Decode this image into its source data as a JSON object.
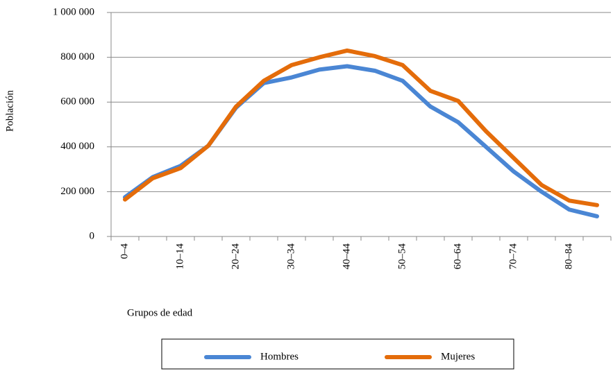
{
  "chart_data": {
    "type": "line",
    "x_label": "Grupos de edad",
    "y_label": "Población",
    "categories": [
      "0–4",
      null,
      "10–14",
      null,
      "20–24",
      null,
      "30–34",
      null,
      "40–44",
      null,
      "50–54",
      null,
      "60–64",
      null,
      "70–74",
      null,
      "80–84",
      null
    ],
    "series": [
      {
        "name": "Hombres",
        "color": "#4a86d4",
        "values": [
          175000,
          265000,
          315000,
          405000,
          575000,
          685000,
          710000,
          745000,
          760000,
          740000,
          695000,
          580000,
          510000,
          400000,
          290000,
          200000,
          120000,
          90000
        ]
      },
      {
        "name": "Mujeres",
        "color": "#e46c0a",
        "values": [
          165000,
          260000,
          305000,
          405000,
          580000,
          695000,
          765000,
          800000,
          830000,
          805000,
          765000,
          650000,
          605000,
          470000,
          350000,
          230000,
          160000,
          140000
        ]
      }
    ],
    "ylim": [
      0,
      1000000
    ],
    "yticks": [
      0,
      {
        "value": 200000,
        "label": "200 000"
      },
      {
        "value": 400000,
        "label": "400 000"
      },
      {
        "value": 600000,
        "label": "600 000"
      },
      {
        "value": 800000,
        "label": "800 000"
      },
      {
        "value": 1000000,
        "label": "1 000 000"
      }
    ],
    "grid": true
  }
}
